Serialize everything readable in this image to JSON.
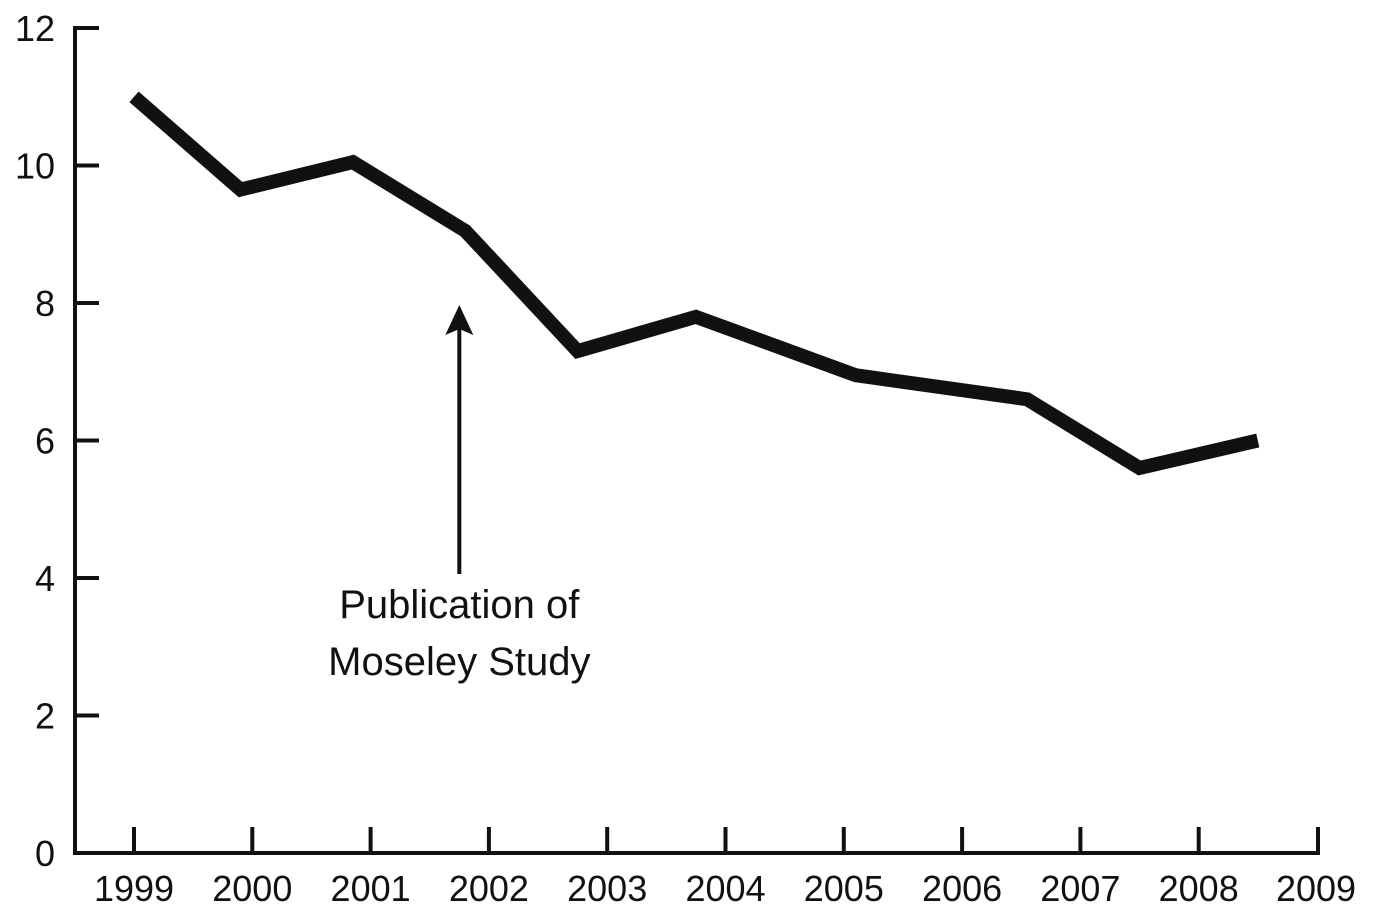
{
  "chart_data": {
    "type": "line",
    "title": "",
    "xlabel": "",
    "ylabel": "",
    "x_ticks": [
      "1999",
      "2000",
      "2001",
      "2002",
      "2003",
      "2004",
      "2005",
      "2006",
      "2007",
      "2008",
      "2009"
    ],
    "y_ticks": [
      "0",
      "2",
      "4",
      "6",
      "8",
      "10",
      "12"
    ],
    "ylim": [
      0,
      12
    ],
    "xlim": [
      1998.5,
      2009.5
    ],
    "grid": false,
    "series": [
      {
        "x": [
          1999.0,
          1999.9,
          2000.85,
          2001.8,
          2002.75,
          2003.75,
          2005.1,
          2006.55,
          2007.5,
          2008.5
        ],
        "y": [
          11.0,
          9.65,
          10.05,
          9.05,
          7.3,
          7.8,
          6.95,
          6.6,
          5.6,
          6.0
        ],
        "color": "#111111"
      }
    ],
    "annotations": [
      {
        "lines": [
          "Publication of",
          "Moseley Study"
        ],
        "x": 2001.75,
        "y": 8.0
      }
    ]
  }
}
